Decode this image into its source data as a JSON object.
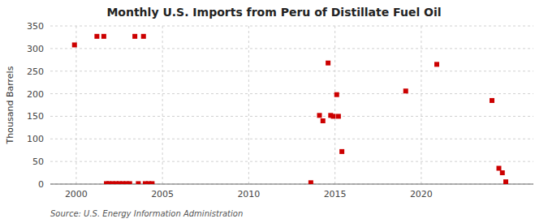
{
  "chart_data": {
    "type": "scatter",
    "title": "Monthly U.S. Imports from Peru of Distillate Fuel Oil",
    "ylabel": "Thousand Barrels",
    "annotations": [
      "Source: U.S. Energy Information Administration"
    ],
    "xlim": [
      1998.5,
      2026.5
    ],
    "ylim": [
      0,
      350
    ],
    "xticks": [
      2000,
      2005,
      2010,
      2015,
      2020
    ],
    "yticks": [
      0,
      50,
      100,
      150,
      200,
      250,
      300,
      350
    ],
    "grid": true,
    "series": [
      {
        "color": "#cc0000",
        "marker": "square",
        "x": [
          1999.9,
          2001.2,
          2001.6,
          2003.4,
          2003.9,
          2013.6,
          2014.1,
          2014.3,
          2014.6,
          2014.75,
          2014.9,
          2015.1,
          2015.2,
          2015.4,
          2019.1,
          2020.9,
          2024.1,
          2024.5,
          2024.7,
          2024.9
        ],
        "values": [
          308,
          327,
          327,
          327,
          327,
          3,
          152,
          140,
          268,
          152,
          150,
          198,
          150,
          72,
          206,
          265,
          185,
          35,
          25,
          5
        ]
      },
      {
        "color": "#cc0000",
        "marker": "square",
        "x": [
          2001.75,
          2001.9,
          2002.1,
          2002.3,
          2002.5,
          2002.7,
          2002.9,
          2003.1,
          2003.6,
          2004.0,
          2004.2,
          2004.4
        ],
        "values": [
          1,
          1,
          1,
          1,
          1,
          1,
          1,
          1,
          1,
          1,
          1,
          1
        ]
      }
    ]
  }
}
